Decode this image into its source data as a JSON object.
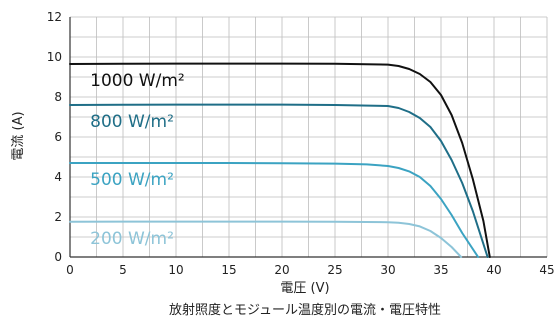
{
  "chart_data": {
    "type": "line",
    "title": "",
    "caption": "放射照度とモジュール温度別の電流・電圧特性",
    "xlabel": "電圧 (V)",
    "ylabel": "電流 (A)",
    "xlim": [
      0,
      45
    ],
    "ylim": [
      0,
      12
    ],
    "xticks": [
      0,
      5,
      10,
      15,
      20,
      25,
      30,
      35,
      40,
      45
    ],
    "yticks": [
      0,
      2,
      4,
      6,
      8,
      10,
      12
    ],
    "grid": true,
    "series": [
      {
        "name": "1000 W/m²",
        "color": "#111111",
        "x": [
          0,
          5,
          10,
          15,
          20,
          25,
          30,
          31,
          32,
          33,
          34,
          35,
          36,
          37,
          38,
          39,
          39.6
        ],
        "y": [
          9.65,
          9.66,
          9.67,
          9.67,
          9.67,
          9.66,
          9.62,
          9.55,
          9.4,
          9.15,
          8.75,
          8.1,
          7.1,
          5.7,
          3.9,
          1.8,
          0
        ]
      },
      {
        "name": "800 W/m²",
        "color": "#1f6e87",
        "x": [
          0,
          5,
          10,
          15,
          20,
          25,
          30,
          31,
          32,
          33,
          34,
          35,
          36,
          37,
          38,
          39.4
        ],
        "y": [
          7.6,
          7.61,
          7.62,
          7.62,
          7.62,
          7.6,
          7.55,
          7.45,
          7.25,
          6.95,
          6.5,
          5.8,
          4.85,
          3.7,
          2.3,
          0
        ]
      },
      {
        "name": "500 W/m²",
        "color": "#3ba3c2",
        "x": [
          0,
          5,
          10,
          15,
          20,
          25,
          28,
          30,
          31,
          32,
          33,
          34,
          35,
          36,
          37,
          38.5
        ],
        "y": [
          4.7,
          4.7,
          4.7,
          4.7,
          4.69,
          4.67,
          4.63,
          4.55,
          4.45,
          4.28,
          4.0,
          3.55,
          2.9,
          2.1,
          1.2,
          0
        ]
      },
      {
        "name": "200 W/m²",
        "color": "#8dc4d8",
        "x": [
          0,
          5,
          10,
          15,
          20,
          25,
          30,
          31,
          32,
          33,
          34,
          35,
          36,
          36.9
        ],
        "y": [
          1.76,
          1.77,
          1.77,
          1.77,
          1.77,
          1.76,
          1.74,
          1.71,
          1.65,
          1.53,
          1.3,
          0.95,
          0.5,
          0
        ]
      }
    ]
  }
}
